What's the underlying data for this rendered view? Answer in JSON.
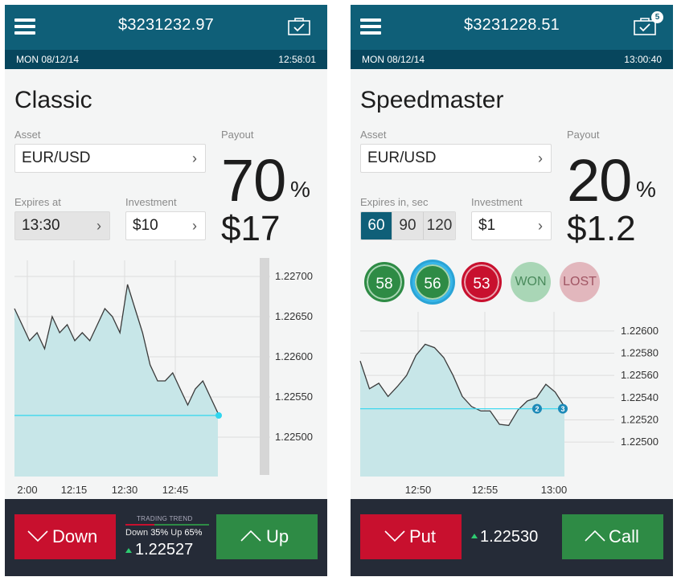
{
  "classic": {
    "balance": "$3231232.97",
    "date": "MON 08/12/14",
    "time": "12:58:01",
    "title": "Classic",
    "asset_label": "Asset",
    "asset_value": "EUR/USD",
    "payout_label": "Payout",
    "payout_pct": "70",
    "pct_symbol": "%",
    "payout_amount": "$17",
    "expires_label": "Expires at",
    "expires_value": "13:30",
    "investment_label": "Investment",
    "investment_value": "$10",
    "y_ticks": [
      "1.22700",
      "1.22650",
      "1.22600",
      "1.22550",
      "1.22500"
    ],
    "x_ticks": [
      "2:00",
      "12:15",
      "12:30",
      "12:45"
    ],
    "down_label": "Down",
    "up_label": "Up",
    "trend_title": "TRADING TREND",
    "trend_down_label": "Down",
    "trend_down_pct": "35%",
    "trend_up_label": "Up",
    "trend_up_pct": "65%",
    "trend_down_value": 35,
    "trend_up_value": 65,
    "current_price": "1.22527"
  },
  "speedmaster": {
    "balance": "$3231228.51",
    "badge_count": "5",
    "date": "MON 08/12/14",
    "time": "13:00:40",
    "title": "Speedmaster",
    "asset_label": "Asset",
    "asset_value": "EUR/USD",
    "payout_label": "Payout",
    "payout_pct": "20",
    "pct_symbol": "%",
    "payout_amount": "$1.2",
    "expires_label": "Expires in, sec",
    "expires_options": [
      "60",
      "90",
      "120"
    ],
    "expires_selected": "60",
    "investment_label": "Investment",
    "investment_value": "$1",
    "timers": [
      {
        "label": "58",
        "state": "running"
      },
      {
        "label": "56",
        "state": "active"
      },
      {
        "label": "53",
        "state": "losing"
      },
      {
        "label": "WON",
        "state": "won"
      },
      {
        "label": "LOST",
        "state": "lost"
      }
    ],
    "y_ticks": [
      "1.22600",
      "1.22580",
      "1.22560",
      "1.22540",
      "1.22520",
      "1.22500"
    ],
    "x_ticks": [
      "12:50",
      "12:55",
      "13:00"
    ],
    "trade_markers": [
      "2",
      "3"
    ],
    "put_label": "Put",
    "call_label": "Call",
    "current_price": "1.22530"
  },
  "colors": {
    "header": "#0f5f78",
    "subheader": "#07465d",
    "chart_fill": "#c7e6e8",
    "chart_line": "#3a3a3a",
    "strike_line": "#2fd6ef",
    "down": "#c8102e",
    "up": "#2e8b45",
    "footer": "#252b37"
  },
  "chart_data": [
    {
      "type": "area",
      "x": [
        "2:00",
        "12:15",
        "12:30",
        "12:45"
      ],
      "ylim": [
        1.2248,
        1.2271
      ],
      "series_values": [
        1.2266,
        1.2264,
        1.2262,
        1.2263,
        1.2261,
        1.2265,
        1.2263,
        1.2264,
        1.2262,
        1.2263,
        1.2262,
        1.2264,
        1.2266,
        1.2265,
        1.2263,
        1.2269,
        1.2266,
        1.2263,
        1.2259,
        1.2257,
        1.2257,
        1.2258,
        1.2256,
        1.2254,
        1.2256,
        1.2257,
        1.2255,
        1.2253
      ],
      "strike": 1.22527
    },
    {
      "type": "area",
      "x": [
        "12:50",
        "12:55",
        "13:00"
      ],
      "ylim": [
        1.2249,
        1.2261
      ],
      "series_values": [
        1.22573,
        1.22548,
        1.22553,
        1.22541,
        1.2255,
        1.2256,
        1.22578,
        1.22588,
        1.22585,
        1.22576,
        1.2256,
        1.22541,
        1.22532,
        1.22528,
        1.22528,
        1.22516,
        1.22515,
        1.22529,
        1.22537,
        1.2254,
        1.22552,
        1.22545,
        1.22532
      ],
      "strike": 1.2253
    }
  ]
}
